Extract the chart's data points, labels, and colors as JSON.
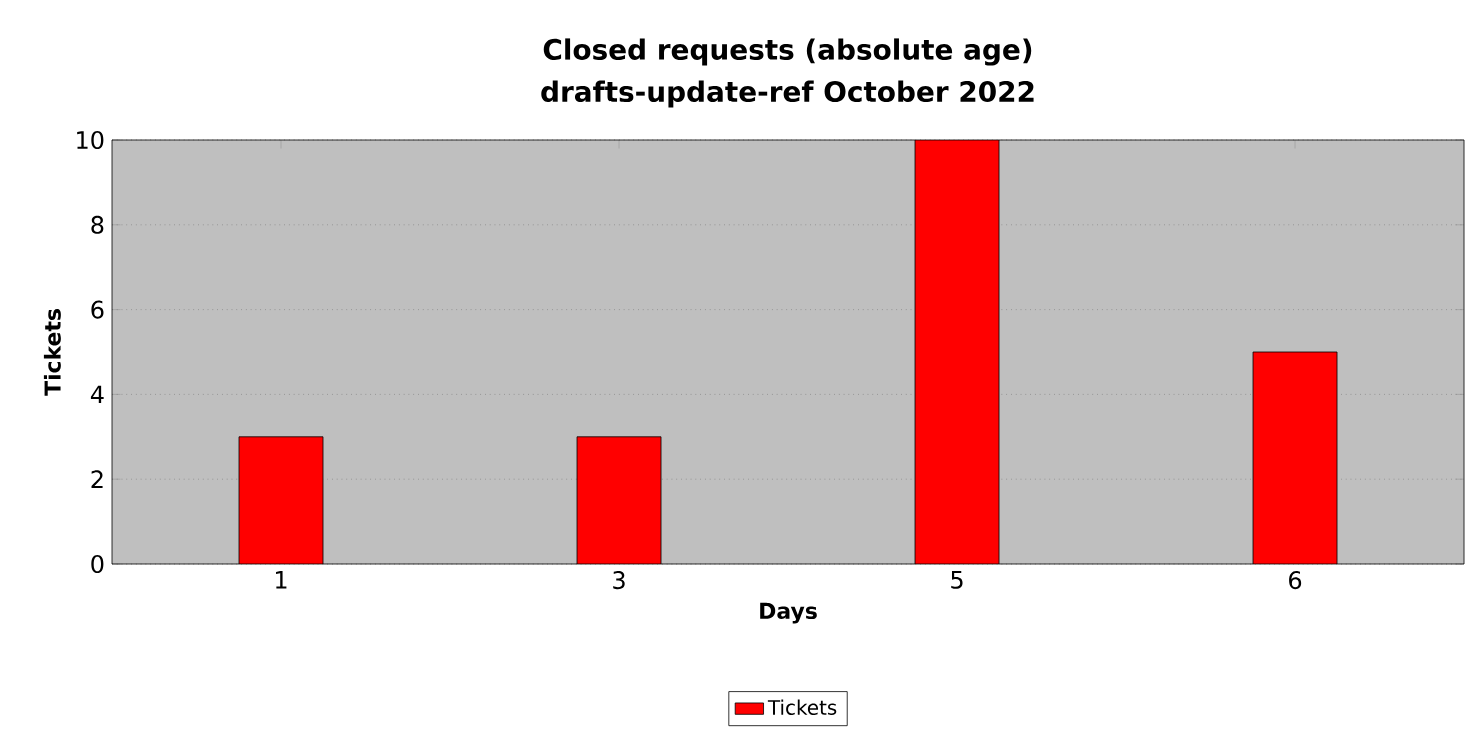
{
  "chart_data": {
    "type": "bar",
    "title": "Closed requests (absolute age)",
    "subtitle": "drafts-update-ref October 2022",
    "xlabel": "Days",
    "ylabel": "Tickets",
    "categories": [
      "1",
      "3",
      "5",
      "6"
    ],
    "series": [
      {
        "name": "Tickets",
        "color": "#ff0000",
        "values": [
          3,
          3,
          10,
          5
        ]
      }
    ],
    "ylim": [
      0,
      10
    ],
    "yticks": [
      0,
      2,
      4,
      6,
      8,
      10
    ],
    "grid": "y",
    "legend": "bottom"
  }
}
